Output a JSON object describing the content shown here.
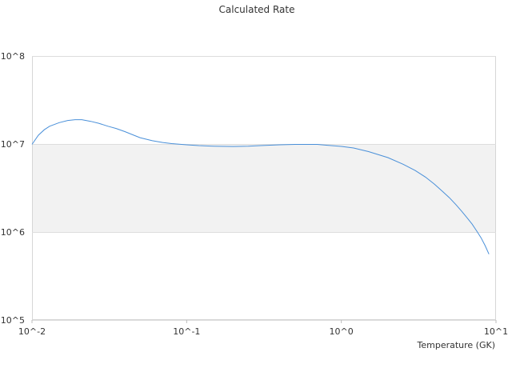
{
  "chart_data": {
    "type": "line",
    "title": "Calculated Rate",
    "xlabel": "Temperature (GK)",
    "ylabel": "",
    "x_scale": "log",
    "y_scale": "log",
    "xlim": [
      0.01,
      10
    ],
    "ylim": [
      100000,
      100000000
    ],
    "x_tick_labels": [
      "10^-2",
      "10^-1",
      "10^0",
      "10^1"
    ],
    "y_tick_labels": [
      "10^5",
      "10^6",
      "10^7",
      "10^8"
    ],
    "shaded_band": {
      "from": 1000000,
      "to": 10000000,
      "color": "#f2f2f2"
    },
    "line_color": "#4a90d9",
    "series": [
      {
        "x": [
          0.01,
          0.011,
          0.012,
          0.013,
          0.015,
          0.017,
          0.019,
          0.021,
          0.024,
          0.027,
          0.031,
          0.035,
          0.04,
          0.045,
          0.05,
          0.06,
          0.07,
          0.08,
          0.1,
          0.12,
          0.15,
          0.2,
          0.25,
          0.3,
          0.4,
          0.5,
          0.6,
          0.7,
          0.8,
          1.0,
          1.2,
          1.5,
          2.0,
          2.5,
          3.0,
          3.5,
          4.0,
          4.5,
          5.0,
          5.5,
          6.0,
          6.5,
          7.0,
          7.5,
          8.0,
          8.5,
          9.0
        ],
        "y": [
          9900000,
          12600000,
          14500000,
          15900000,
          17500000,
          18500000,
          18900000,
          18900000,
          18100000,
          17200000,
          15900000,
          15000000,
          13800000,
          12700000,
          11800000,
          10900000,
          10400000,
          10100000,
          9800000,
          9580000,
          9450000,
          9380000,
          9450000,
          9600000,
          9800000,
          9900000,
          9900000,
          9900000,
          9700000,
          9400000,
          9000000,
          8200000,
          7000000,
          5900000,
          5000000,
          4200000,
          3500000,
          2900000,
          2450000,
          2050000,
          1720000,
          1450000,
          1230000,
          1030000,
          860000,
          700000,
          560000
        ]
      }
    ]
  }
}
